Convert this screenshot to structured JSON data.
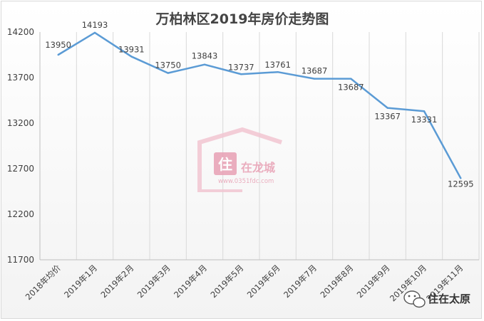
{
  "chart_data": {
    "type": "line",
    "title": "万柏林区2019年房价走势图",
    "categories": [
      "2018年均价",
      "2019年1月",
      "2019年2月",
      "2019年3月",
      "2019年4月",
      "2019年5月",
      "2019年6月",
      "2019年7月",
      "2019年8月",
      "2019年9月",
      "2019年10月",
      "2019年11月"
    ],
    "values": [
      13950,
      14193,
      13931,
      13750,
      13843,
      13737,
      13761,
      13687,
      13687,
      13367,
      13331,
      12595
    ],
    "data_labels": [
      "13950",
      "14193",
      "13931",
      "13750",
      "13843",
      "13737",
      "13761",
      "13687",
      "13687",
      "13367",
      "13331",
      "12595"
    ],
    "yticks": [
      "11700",
      "12200",
      "12700",
      "13200",
      "13700",
      "14200"
    ],
    "ylim": [
      11700,
      14200
    ],
    "grid": "vertical",
    "legend": "none",
    "line_color": "#5b9bd5"
  },
  "watermark": {
    "badge_char": "住",
    "text": "在龙城",
    "url": "www.0351fdc.com"
  },
  "brand": {
    "text": "住在太原",
    "icon": "wechat-bubble-icon"
  }
}
